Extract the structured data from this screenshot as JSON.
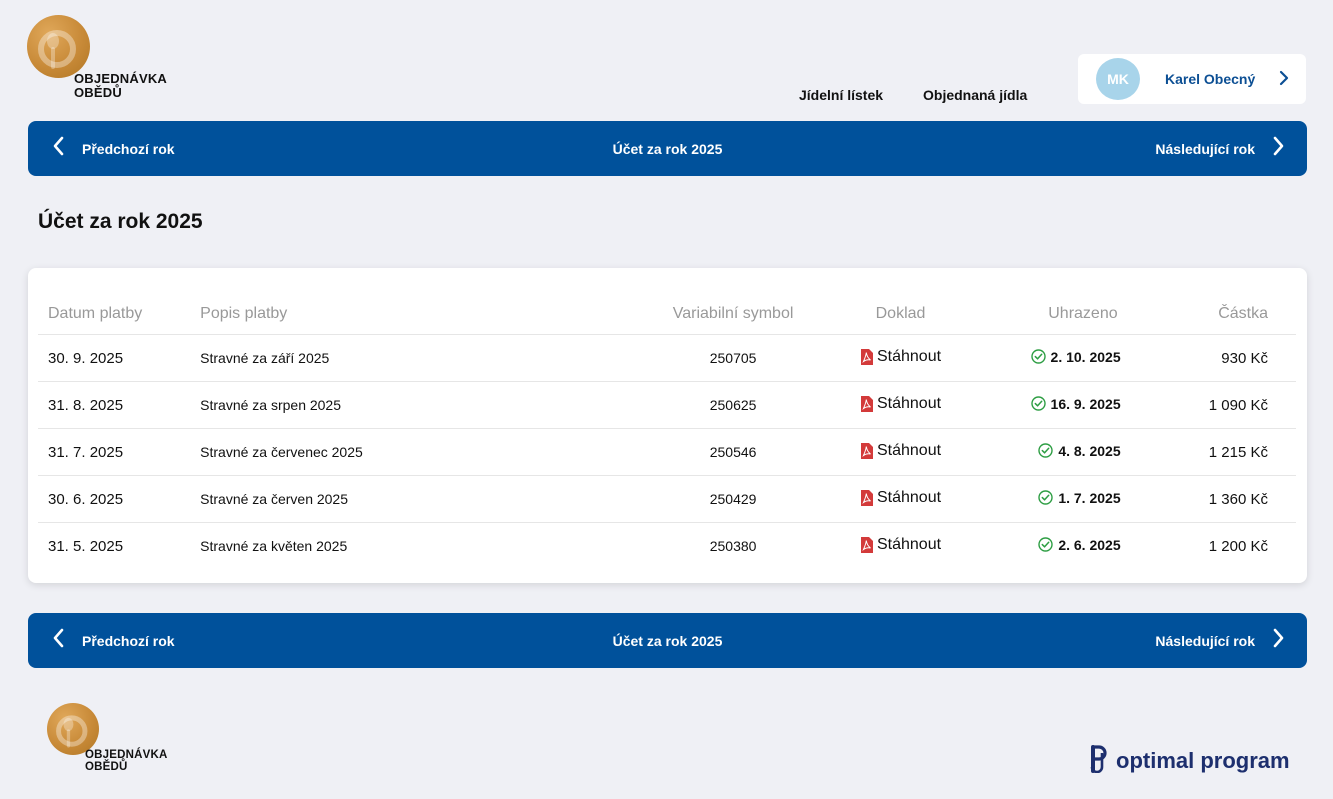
{
  "brand": {
    "line1": "OBJEDNÁVKA",
    "line2": "OBĚDŮ"
  },
  "nav": {
    "menu": "Jídelní lístek",
    "orders": "Objednaná jídla"
  },
  "user": {
    "initials": "MK",
    "name": "Karel Obecný"
  },
  "year_nav": {
    "prev": "Předchozí rok",
    "title": "Účet za rok 2025",
    "next": "Následující rok"
  },
  "page": {
    "title": "Účet za rok 2025"
  },
  "table": {
    "headers": [
      "Datum platby",
      "Popis platby",
      "Variabilní symbol",
      "Doklad",
      "Uhrazeno",
      "Částka"
    ],
    "rows": [
      {
        "date": "30. 9. 2025",
        "desc": "Stravné za září 2025",
        "vs": "250705",
        "doc": "Stáhnout",
        "paid": "2. 10. 2025",
        "amount": "930 Kč"
      },
      {
        "date": "31. 8. 2025",
        "desc": "Stravné za srpen 2025",
        "vs": "250625",
        "doc": "Stáhnout",
        "paid": "16. 9. 2025",
        "amount": "1 090 Kč"
      },
      {
        "date": "31. 7. 2025",
        "desc": "Stravné za červenec 2025",
        "vs": "250546",
        "doc": "Stáhnout",
        "paid": "4. 8. 2025",
        "amount": "1 215 Kč"
      },
      {
        "date": "30. 6. 2025",
        "desc": "Stravné za červen 2025",
        "vs": "250429",
        "doc": "Stáhnout",
        "paid": "1. 7. 2025",
        "amount": "1 360 Kč"
      },
      {
        "date": "31. 5. 2025",
        "desc": "Stravné za květen 2025",
        "vs": "250380",
        "doc": "Stáhnout",
        "paid": "2. 6. 2025",
        "amount": "1 200 Kč"
      }
    ]
  },
  "footer": {
    "vendor": "optimal program"
  },
  "icons": {
    "pdf": "pdf-icon",
    "paid": "check-circle-icon",
    "prev": "chevron-left-icon",
    "next": "chevron-right-icon"
  },
  "colors": {
    "primary": "#00519b",
    "background": "#eff0f5",
    "pdf": "#d33a3a",
    "paid": "#2e9e44",
    "user_name": "#0c4f94"
  }
}
